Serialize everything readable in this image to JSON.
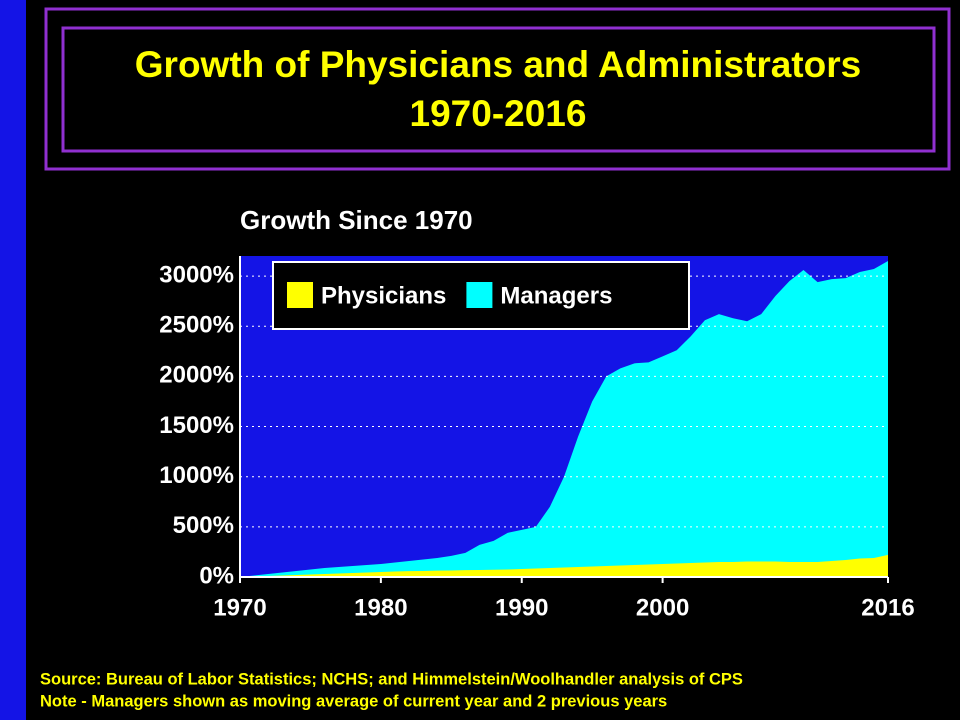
{
  "chart_data": {
    "type": "area",
    "title": [
      "Growth of Physicians and Administrators",
      "1970-2016"
    ],
    "subtitle": "Growth Since 1970",
    "x": [
      1970,
      1971,
      1972,
      1973,
      1974,
      1975,
      1976,
      1977,
      1978,
      1979,
      1980,
      1981,
      1982,
      1983,
      1984,
      1985,
      1986,
      1987,
      1988,
      1989,
      1990,
      1991,
      1992,
      1993,
      1994,
      1995,
      1996,
      1997,
      1998,
      1999,
      2000,
      2001,
      2002,
      2003,
      2004,
      2005,
      2006,
      2007,
      2008,
      2009,
      2010,
      2011,
      2012,
      2013,
      2014,
      2015,
      2016
    ],
    "series": [
      {
        "name": "Managers",
        "color": "#00ffff",
        "values": [
          0,
          15,
          30,
          45,
          60,
          75,
          90,
          100,
          110,
          120,
          130,
          145,
          160,
          175,
          190,
          210,
          240,
          320,
          360,
          440,
          470,
          500,
          700,
          1000,
          1400,
          1750,
          2000,
          2080,
          2130,
          2140,
          2200,
          2260,
          2400,
          2560,
          2620,
          2580,
          2550,
          2620,
          2800,
          2950,
          3060,
          2940,
          2970,
          2980,
          3040,
          3070,
          3150
        ]
      },
      {
        "name": "Physicians",
        "color": "#ffff00",
        "values": [
          0,
          5,
          10,
          15,
          20,
          25,
          30,
          35,
          40,
          45,
          50,
          55,
          58,
          60,
          63,
          65,
          68,
          70,
          72,
          75,
          80,
          85,
          90,
          95,
          100,
          105,
          110,
          115,
          120,
          125,
          130,
          135,
          140,
          145,
          150,
          150,
          155,
          155,
          155,
          150,
          150,
          150,
          160,
          170,
          185,
          190,
          220
        ]
      }
    ],
    "legend_order": [
      1,
      0
    ],
    "legend": "top-left",
    "xlim": [
      1970,
      2016
    ],
    "xticks": [
      1970,
      1980,
      1990,
      2000,
      2016
    ],
    "ylim": [
      0,
      3200
    ],
    "yticks": [
      {
        "value": 0,
        "label": "0%"
      },
      {
        "value": 500,
        "label": "500%"
      },
      {
        "value": 1000,
        "label": "1000%"
      },
      {
        "value": 1500,
        "label": "1500%"
      },
      {
        "value": 2000,
        "label": "2000%"
      },
      {
        "value": 2500,
        "label": "2500%"
      },
      {
        "value": 3000,
        "label": "3000%"
      }
    ],
    "grid": true,
    "plot_background": "#1414e6",
    "notes": [
      "Source: Bureau of Labor Statistics; NCHS; and Himmelstein/Woolhandler analysis of CPS",
      "Note - Managers shown as moving average of current year and 2 previous years"
    ]
  }
}
